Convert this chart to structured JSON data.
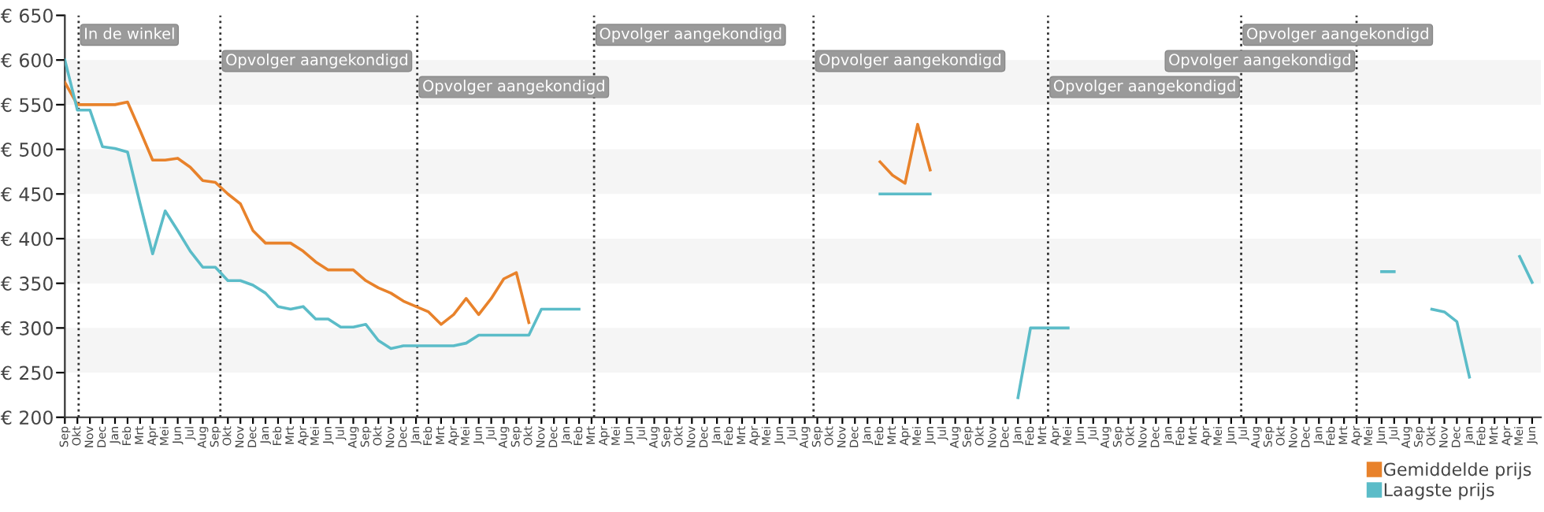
{
  "chart_data": {
    "type": "line",
    "categories": [
      "Sep",
      "Okt",
      "Nov",
      "Dec",
      "Jan",
      "Feb",
      "Mrt",
      "Apr",
      "Mei",
      "Jun",
      "Jul",
      "Aug",
      "Sep",
      "Okt",
      "Nov",
      "Dec",
      "Jan",
      "Feb",
      "Mrt",
      "Apr",
      "Mei",
      "Jun",
      "Jul",
      "Aug",
      "Sep",
      "Okt",
      "Nov",
      "Dec",
      "Jan",
      "Feb",
      "Mrt",
      "Apr",
      "Mei",
      "Jun",
      "Jul",
      "Aug",
      "Sep",
      "Okt",
      "Nov",
      "Dec",
      "Jan",
      "Feb",
      "Mrt",
      "Apr",
      "Mei",
      "Jun",
      "Jul",
      "Aug",
      "Sep",
      "Okt",
      "Nov",
      "Dec",
      "Jan",
      "Feb",
      "Mrt",
      "Apr",
      "Mei",
      "Jun",
      "Jul",
      "Aug",
      "Sep",
      "Okt",
      "Nov",
      "Dec",
      "Jan",
      "Feb",
      "Mrt",
      "Apr",
      "Mei",
      "Jun",
      "Jul",
      "Aug",
      "Sep",
      "Okt",
      "Nov",
      "Dec",
      "Jan",
      "Feb",
      "Mrt",
      "Apr",
      "Mei",
      "Jun",
      "Jul",
      "Aug",
      "Sep",
      "Okt",
      "Nov",
      "Dec",
      "Jan",
      "Feb",
      "Mrt",
      "Apr",
      "Mei",
      "Jun",
      "Jul",
      "Aug",
      "Sep",
      "Okt",
      "Nov",
      "Dec",
      "Jan",
      "Feb",
      "Mrt",
      "Apr",
      "Mei",
      "Jun",
      "Jul",
      "Aug",
      "Sep",
      "Okt",
      "Nov",
      "Dec",
      "Jan",
      "Feb",
      "Mrt",
      "Apr",
      "Mei",
      "Jun"
    ],
    "ylim": [
      200,
      650
    ],
    "yticks": [
      {
        "value": 200,
        "label": "€ 200"
      },
      {
        "value": 250,
        "label": "€ 250"
      },
      {
        "value": 300,
        "label": "€ 300"
      },
      {
        "value": 350,
        "label": "€ 350"
      },
      {
        "value": 400,
        "label": "€ 400"
      },
      {
        "value": 450,
        "label": "€ 450"
      },
      {
        "value": 500,
        "label": "€ 500"
      },
      {
        "value": 550,
        "label": "€ 550"
      },
      {
        "value": 600,
        "label": "€ 600"
      },
      {
        "value": 650,
        "label": "€ 650"
      }
    ],
    "series": [
      {
        "name": "Gemiddelde prijs",
        "color": "#e8822b",
        "values": [
          575,
          550,
          550,
          550,
          550,
          553,
          521,
          488,
          488,
          490,
          480,
          465,
          463,
          450,
          439,
          409,
          395,
          395,
          395,
          386,
          374,
          365,
          365,
          365,
          353,
          345,
          339,
          330,
          324,
          318,
          304,
          315,
          333,
          315,
          333,
          355,
          362,
          306,
          null,
          null,
          null,
          null,
          null,
          null,
          null,
          null,
          null,
          null,
          null,
          null,
          null,
          null,
          null,
          null,
          null,
          null,
          null,
          null,
          null,
          null,
          null,
          null,
          null,
          null,
          null,
          486,
          471,
          462,
          528,
          477,
          null,
          null,
          null,
          null,
          null,
          null,
          null,
          null,
          null,
          null,
          null,
          null,
          null,
          null,
          null,
          null,
          null,
          null,
          null,
          null,
          null,
          null,
          null,
          null,
          null,
          null,
          null,
          null,
          null,
          null,
          null,
          null,
          null,
          null,
          null,
          null,
          null,
          null,
          null,
          null,
          null,
          null,
          null,
          null,
          null,
          null,
          null,
          null
        ]
      },
      {
        "name": "Laagste prijs",
        "color": "#5bbcc8",
        "values": [
          600,
          544,
          544,
          503,
          501,
          497,
          439,
          383,
          431,
          409,
          386,
          368,
          368,
          353,
          353,
          348,
          339,
          324,
          321,
          324,
          310,
          310,
          301,
          301,
          304,
          286,
          277,
          280,
          280,
          280,
          280,
          280,
          283,
          292,
          292,
          292,
          292,
          292,
          321,
          321,
          321,
          321,
          null,
          null,
          null,
          null,
          null,
          null,
          null,
          null,
          null,
          null,
          null,
          null,
          null,
          null,
          null,
          null,
          null,
          null,
          null,
          null,
          null,
          null,
          null,
          450,
          450,
          450,
          450,
          450,
          null,
          null,
          null,
          null,
          null,
          null,
          222,
          300,
          300,
          300,
          300,
          null,
          null,
          null,
          null,
          null,
          null,
          null,
          null,
          null,
          null,
          null,
          null,
          null,
          null,
          null,
          null,
          null,
          null,
          null,
          null,
          null,
          null,
          null,
          null,
          363,
          363,
          null,
          null,
          321,
          318,
          307,
          245,
          null,
          null,
          null,
          380,
          351
        ]
      }
    ],
    "annotations": [
      "In de winkel",
      "Opvolger aangekondigd",
      "Opvolger aangekondigd",
      "Opvolger aangekondigd",
      "Opvolger aangekondigd",
      "Opvolger aangekondigd",
      "Opvolger aangekondigd",
      "Opvolger aangekondigd"
    ],
    "bands": [
      {
        "axis": "y",
        "from": 250,
        "to": 300,
        "color": "#f5f5f5"
      },
      {
        "axis": "y",
        "from": 350,
        "to": 400,
        "color": "#f5f5f5"
      },
      {
        "axis": "y",
        "from": 450,
        "to": 500,
        "color": "#f5f5f5"
      },
      {
        "axis": "y",
        "from": 550,
        "to": 600,
        "color": "#f5f5f5"
      }
    ],
    "legend": "bottom right"
  }
}
